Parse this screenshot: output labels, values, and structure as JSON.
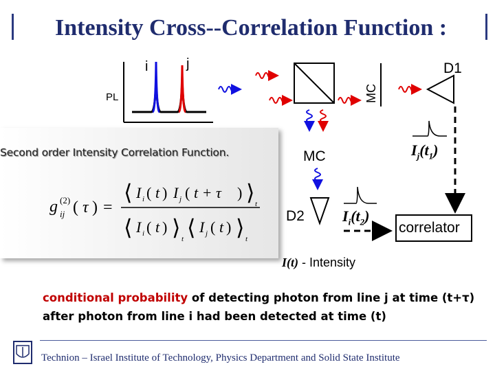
{
  "title": "Intensity Cross--Correlation Function :",
  "labels": {
    "i": "i",
    "j": "j",
    "pl": "PL",
    "mc_vertical": "MC",
    "mc_lower": "MC",
    "d1": "D1",
    "d2": "D2",
    "ij_t1_main": "I",
    "ij_t1_sub": "j",
    "ij_t1_arg": "(t",
    "ij_t1_argsub": "1",
    "ij_t1_close": ")",
    "ii_t2_main": "I",
    "ii_t2_sub": "i",
    "ii_t2_arg": "(t",
    "ii_t2_argsub": "2",
    "ii_t2_close": ")",
    "correlator": "correlator"
  },
  "panel": {
    "title": "Second order Intensity Correlation Function."
  },
  "intensity_note": {
    "symbol": "I(t)",
    "text": " - Intensity"
  },
  "caption": {
    "red1": "conditional probability",
    "black1": " of detecting photon from line j at time (t+",
    "tau": "τ",
    "black2": ") after photon from line i had been detected at time (t)"
  },
  "footer": "Technion – Israel Institute of Technology, Physics Department and Solid State Institute",
  "colors": {
    "title": "#1f2c6e",
    "red": "#e00000",
    "blue": "#1010e0",
    "caption_red": "#c00000"
  }
}
